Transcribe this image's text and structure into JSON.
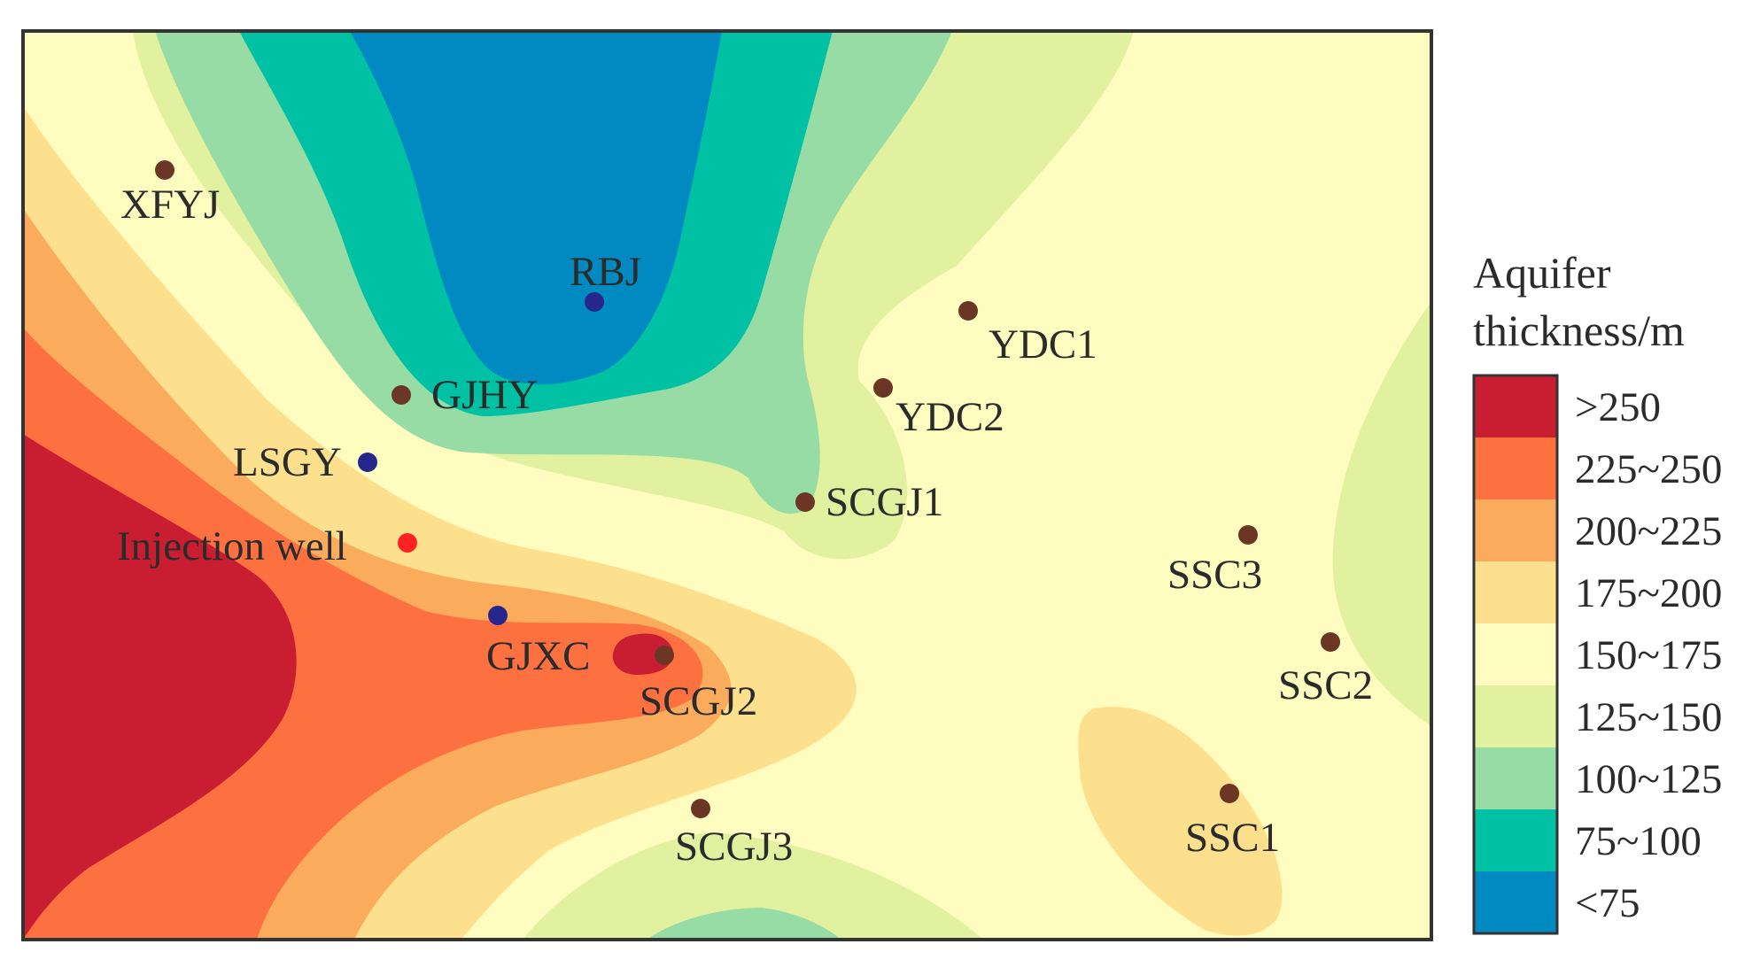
{
  "legend": {
    "title_line1": "Aquifer",
    "title_line2": "thickness/m",
    "classes": [
      {
        "label": ">250",
        "color": "#c91d31"
      },
      {
        "label": "225~250",
        "color": "#fd7040"
      },
      {
        "label": "200~225",
        "color": "#fbab5c"
      },
      {
        "label": "175~200",
        "color": "#fde08e"
      },
      {
        "label": "150~175",
        "color": "#fffcbf"
      },
      {
        "label": "125~150",
        "color": "#e2f1a0"
      },
      {
        "label": "100~125",
        "color": "#97dca4"
      },
      {
        "label": "75~100",
        "color": "#00c1a4"
      },
      {
        "label": "<75",
        "color": "#0189c2"
      }
    ]
  },
  "wells": [
    {
      "label": "XFYJ",
      "type": "observation",
      "color": "#6b3624"
    },
    {
      "label": "RBJ",
      "type": "monitoring",
      "color": "#26278c"
    },
    {
      "label": "YDC1",
      "type": "observation",
      "color": "#6b3624"
    },
    {
      "label": "GJHY",
      "type": "observation",
      "color": "#6b3624"
    },
    {
      "label": "YDC2",
      "type": "observation",
      "color": "#6b3624"
    },
    {
      "label": "LSGY",
      "type": "monitoring",
      "color": "#26278c"
    },
    {
      "label": "SCGJ1",
      "type": "observation",
      "color": "#6b3624"
    },
    {
      "label": "Injection well",
      "type": "injection",
      "color": "#ff2222"
    },
    {
      "label": "SSC3",
      "type": "observation",
      "color": "#6b3624"
    },
    {
      "label": "GJXC",
      "type": "monitoring",
      "color": "#26278c"
    },
    {
      "label": "SCGJ2",
      "type": "observation",
      "color": "#6b3624"
    },
    {
      "label": "SSC2",
      "type": "observation",
      "color": "#6b3624"
    },
    {
      "label": "SCGJ3",
      "type": "observation",
      "color": "#6b3624"
    },
    {
      "label": "SSC1",
      "type": "observation",
      "color": "#6b3624"
    }
  ]
}
